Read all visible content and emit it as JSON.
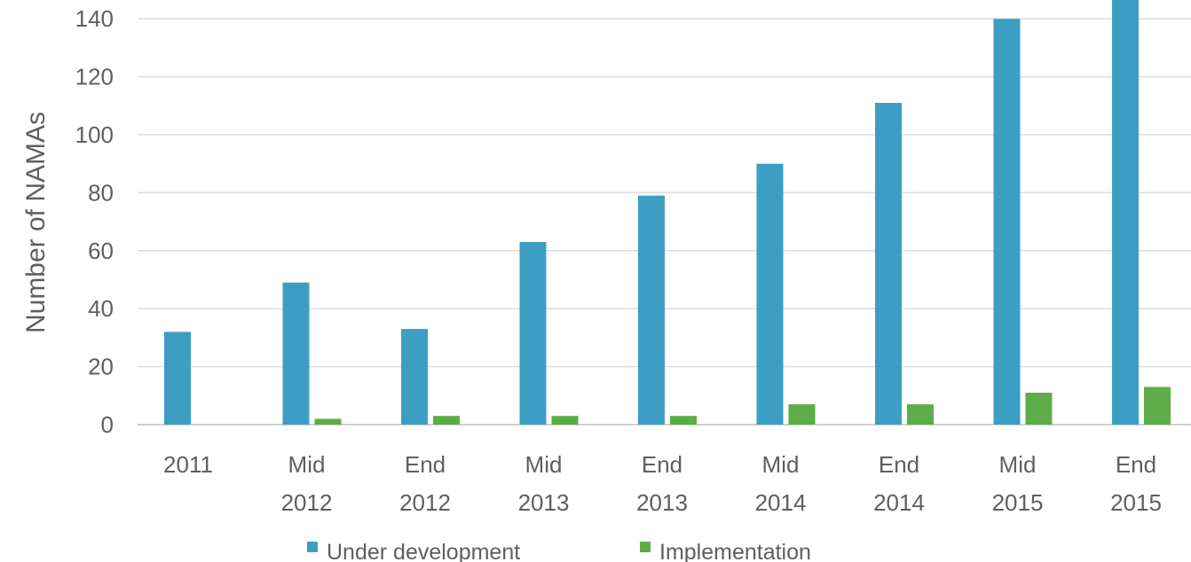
{
  "chart_data": {
    "type": "bar",
    "title": "",
    "xlabel": "",
    "ylabel": "Number of NAMAs",
    "ylim": [
      0,
      150
    ],
    "yticks": [
      0,
      20,
      40,
      60,
      80,
      100,
      120,
      140
    ],
    "grid": true,
    "legend_position": "bottom",
    "categories": [
      [
        "2011"
      ],
      [
        "Mid",
        "2012"
      ],
      [
        "End",
        "2012"
      ],
      [
        "Mid",
        "2013"
      ],
      [
        "End",
        "2013"
      ],
      [
        "Mid",
        "2014"
      ],
      [
        "End",
        "2014"
      ],
      [
        "Mid",
        "2015"
      ],
      [
        "End",
        "2015"
      ]
    ],
    "series": [
      {
        "name": "Under development",
        "color": "#3d9ec4",
        "values": [
          32,
          49,
          33,
          63,
          79,
          90,
          111,
          140,
          150
        ]
      },
      {
        "name": "Implementation",
        "color": "#5cad47",
        "values": [
          0,
          2,
          3,
          3,
          3,
          7,
          7,
          11,
          13
        ]
      }
    ]
  }
}
